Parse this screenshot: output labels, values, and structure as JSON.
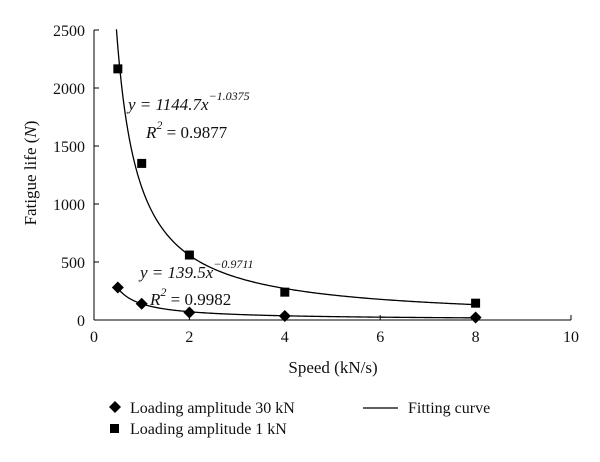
{
  "chart_data": {
    "type": "scatter",
    "xlabel": "Speed (kN/s)",
    "ylabel": "Fatigue life (N)",
    "xlim": [
      0,
      10
    ],
    "ylim": [
      0,
      2500
    ],
    "xticks": [
      0,
      2,
      4,
      6,
      8,
      10
    ],
    "yticks": [
      0,
      500,
      1000,
      1500,
      2000,
      2500
    ],
    "x_tick_labels": [
      "0",
      "2",
      "4",
      "6",
      "8",
      "10"
    ],
    "y_tick_labels": [
      "0",
      "500",
      "1000",
      "1500",
      "2000",
      "2500"
    ],
    "grid": false,
    "legend_position": "bottom",
    "series": [
      {
        "name": "Loading amplitude 30 kN",
        "marker": "diamond",
        "color": "#000000",
        "points": [
          [
            0.5,
            280
          ],
          [
            1,
            140
          ],
          [
            2,
            65
          ],
          [
            4,
            35
          ],
          [
            8,
            22
          ]
        ]
      },
      {
        "name": "Loading amplitude 1 kN",
        "marker": "square",
        "color": "#000000",
        "points": [
          [
            0.5,
            2165
          ],
          [
            1,
            1350
          ],
          [
            2,
            560
          ],
          [
            4,
            240
          ],
          [
            8,
            145
          ]
        ]
      }
    ],
    "fits": [
      {
        "name": "Fitting curve",
        "series": "Loading amplitude 1 kN",
        "a": 1144.7,
        "b": -1.0375,
        "x_range": [
          0.47,
          8
        ],
        "equation_base": "y = 1144.7x",
        "equation_exp": "−1.0375",
        "r2_base": "R",
        "r2_sup": "2",
        "r2_value": " = 0.9877"
      },
      {
        "name": "Fitting curve",
        "series": "Loading amplitude 30 kN",
        "a": 139.5,
        "b": -0.9711,
        "x_range": [
          0.5,
          8
        ],
        "equation_base": "y = 139.5x",
        "equation_exp": "−0.9711",
        "r2_base": "R",
        "r2_sup": "2",
        "r2_value": " = 0.9982"
      }
    ],
    "legend": [
      {
        "label": "Loading amplitude 30 kN",
        "symbol": "diamond"
      },
      {
        "label": "Fitting curve",
        "symbol": "line"
      },
      {
        "label": "Loading amplitude 1 kN",
        "symbol": "square"
      }
    ]
  }
}
